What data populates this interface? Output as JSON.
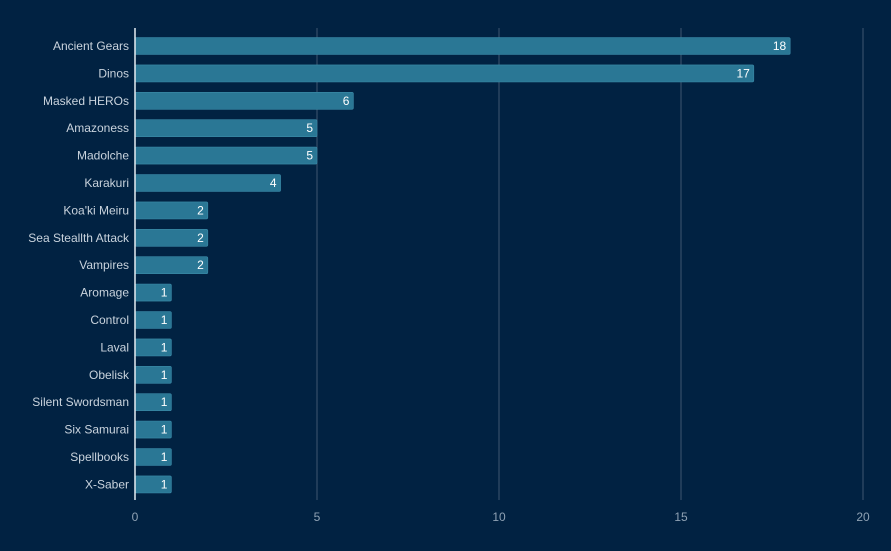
{
  "colors": {
    "background": "#012242",
    "bar": "#2a7795",
    "bar_stroke": "#3a8aa8",
    "grid": "#3e5670",
    "label_text": "#c9d3dd",
    "tick_text": "#8fa2b4",
    "data_label_text": "#ffffff"
  },
  "chart_data": {
    "type": "bar",
    "orientation": "horizontal",
    "categories": [
      "Ancient Gears",
      "Dinos",
      "Masked HEROs",
      "Amazoness",
      "Madolche",
      "Karakuri",
      "Koa'ki Meiru",
      "Sea Steallth Attack",
      "Vampires",
      "Aromage",
      "Control",
      "Laval",
      "Obelisk",
      "Silent Swordsman",
      "Six Samurai",
      "Spellbooks",
      "X-Saber"
    ],
    "values": [
      18,
      17,
      6,
      5,
      5,
      4,
      2,
      2,
      2,
      1,
      1,
      1,
      1,
      1,
      1,
      1,
      1
    ],
    "x_ticks": [
      "0",
      "5",
      "10",
      "15",
      "20"
    ],
    "xlim": [
      0,
      20
    ],
    "grid": true,
    "data_labels": true,
    "legend": false,
    "title": "",
    "xlabel": "",
    "ylabel": ""
  }
}
